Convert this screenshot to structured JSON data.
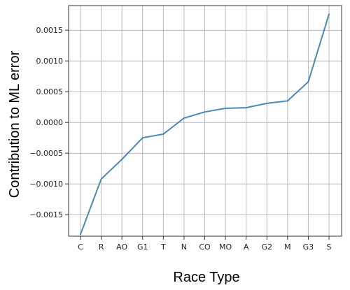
{
  "chart_data": {
    "type": "line",
    "title": "",
    "xlabel": "Race Type",
    "ylabel": "Contribution to ML error",
    "categories": [
      "C",
      "R",
      "AO",
      "G1",
      "T",
      "N",
      "CO",
      "MO",
      "A",
      "G2",
      "M",
      "G3",
      "S"
    ],
    "series": [
      {
        "name": "",
        "values": [
          -0.00182,
          -0.00092,
          -0.0006,
          -0.00025,
          -0.00019,
          7e-05,
          0.00017,
          0.00023,
          0.00024,
          0.00031,
          0.00035,
          0.00066,
          0.00176
        ]
      }
    ],
    "yticks": [
      -0.0015,
      -0.001,
      -0.0005,
      0.0,
      0.0005,
      0.001,
      0.0015
    ],
    "ytick_labels": [
      "−0.0015",
      "−0.0010",
      "−0.0005",
      "0.0000",
      "0.0005",
      "0.0010",
      "0.0015"
    ],
    "ylim": [
      -0.00185,
      0.0019
    ],
    "grid": true,
    "line_color": "#4a8ab0",
    "grid_color": "#b8b8b8"
  }
}
